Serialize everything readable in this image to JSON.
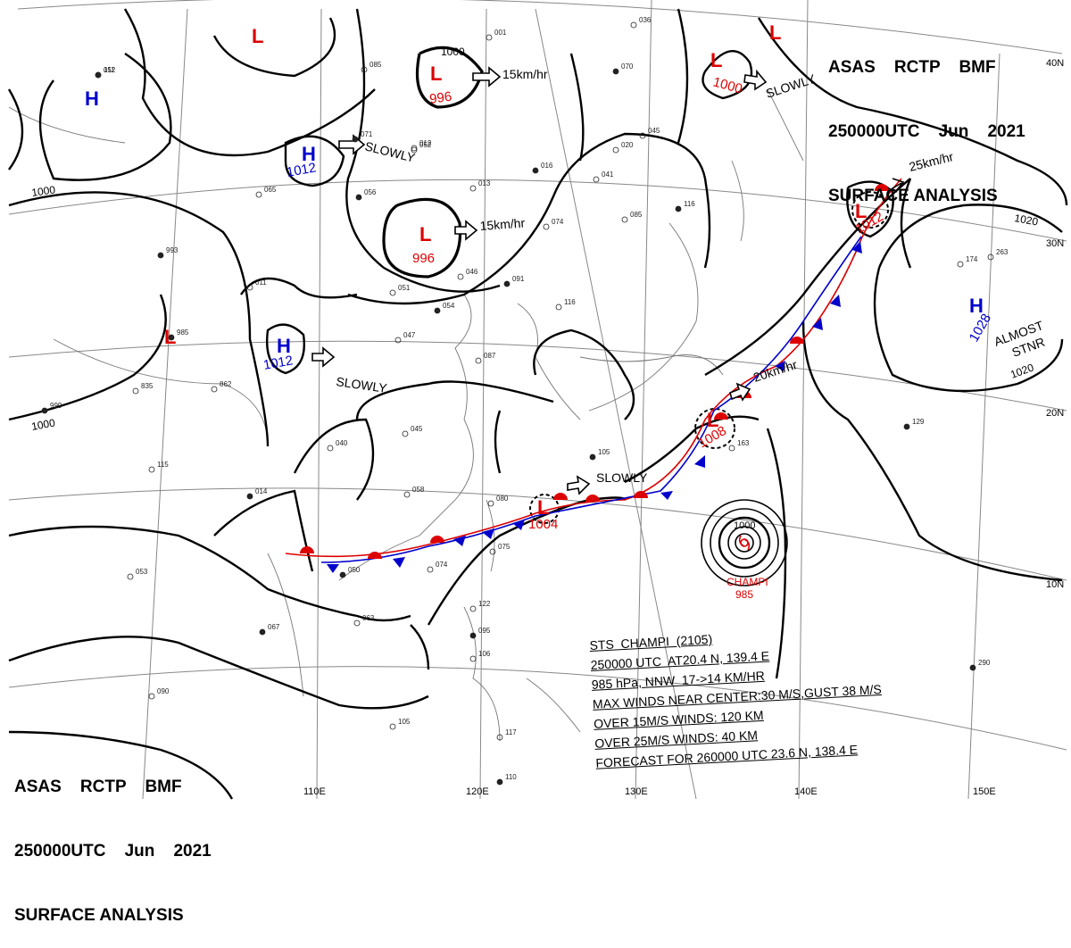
{
  "header_top": {
    "line1_a": "ASAS",
    "line1_b": "RCTP",
    "line1_c": "BMF",
    "line2_a": "250000UTC",
    "line2_b": "Jun",
    "line2_c": "2021",
    "line3": "SURFACE ANALYSIS"
  },
  "header_bottom": {
    "line1_a": "ASAS",
    "line1_b": "RCTP",
    "line1_c": "BMF",
    "line2_a": "250000UTC",
    "line2_b": "Jun",
    "line2_c": "2021",
    "line3": "SURFACE ANALYSIS"
  },
  "longitude_labels": [
    "110E",
    "120E",
    "130E",
    "140E",
    "150E"
  ],
  "latitude_labels": [
    "40N",
    "30N",
    "20N",
    "10N"
  ],
  "isobar_labels": [
    "1000",
    "1000",
    "1000",
    "1020",
    "1020"
  ],
  "pressure_centers": [
    {
      "type": "H",
      "value": "1012",
      "color": "#0000cc"
    },
    {
      "type": "H",
      "value": "1012",
      "color": "#0000cc"
    },
    {
      "type": "H",
      "value": "1028",
      "color": "#0000cc"
    },
    {
      "type": "H",
      "value": "",
      "color": "#0000cc"
    },
    {
      "type": "L",
      "value": "996",
      "color": "#dd0000"
    },
    {
      "type": "L",
      "value": "996",
      "color": "#dd0000"
    },
    {
      "type": "L",
      "value": "1000",
      "color": "#dd0000"
    },
    {
      "type": "L",
      "value": "1012",
      "color": "#dd0000"
    },
    {
      "type": "L",
      "value": "1008",
      "color": "#dd0000"
    },
    {
      "type": "L",
      "value": "1004",
      "color": "#dd0000"
    },
    {
      "type": "L",
      "value": "",
      "color": "#dd0000"
    },
    {
      "type": "L",
      "value": "",
      "color": "#dd0000"
    },
    {
      "type": "L",
      "value": "",
      "color": "#dd0000"
    }
  ],
  "movements": [
    "15km/hr",
    "SLOWLY",
    "15km/hr",
    "SLOWLY",
    "SLOWLY",
    "SLOWLY",
    "25km/hr",
    "20km/hr"
  ],
  "almost_stnr": {
    "line1": "ALMOST",
    "line2": "STNR"
  },
  "typhoon": {
    "name": "CHAMPI",
    "pressure": "985",
    "isobar": "1000",
    "symbol_color": "#dd0000"
  },
  "storm_info": {
    "line1": "STS  CHAMPI  (2105)",
    "line2": "250000 UTC  AT20.4 N, 139.4 E",
    "line3": "985 hPa, NNW  17->14 KM/HR",
    "line4": "MAX WINDS NEAR CENTER:30 M/S,GUST 38 M/S",
    "line5": "OVER 15M/S WINDS: 120 KM",
    "line6": "OVER 25M/S WINDS: 40 KM",
    "line7": "FORECAST FOR 260000 UTC 23.6 N, 138.4 E"
  },
  "station_numbers": [
    "152",
    "085",
    "052",
    "071",
    "012",
    "013",
    "016",
    "041",
    "065",
    "056",
    "074",
    "085",
    "116",
    "045",
    "020",
    "070",
    "036",
    "001",
    "993",
    "011",
    "046",
    "091",
    "116",
    "051",
    "054",
    "047",
    "087",
    "985",
    "835",
    "862",
    "999",
    "045",
    "040",
    "014",
    "058",
    "080",
    "105",
    "075",
    "074",
    "050",
    "053",
    "063",
    "067",
    "090",
    "122",
    "095",
    "106",
    "105",
    "110",
    "117",
    "163",
    "129",
    "174",
    "263",
    "290",
    "115",
    "011"
  ]
}
